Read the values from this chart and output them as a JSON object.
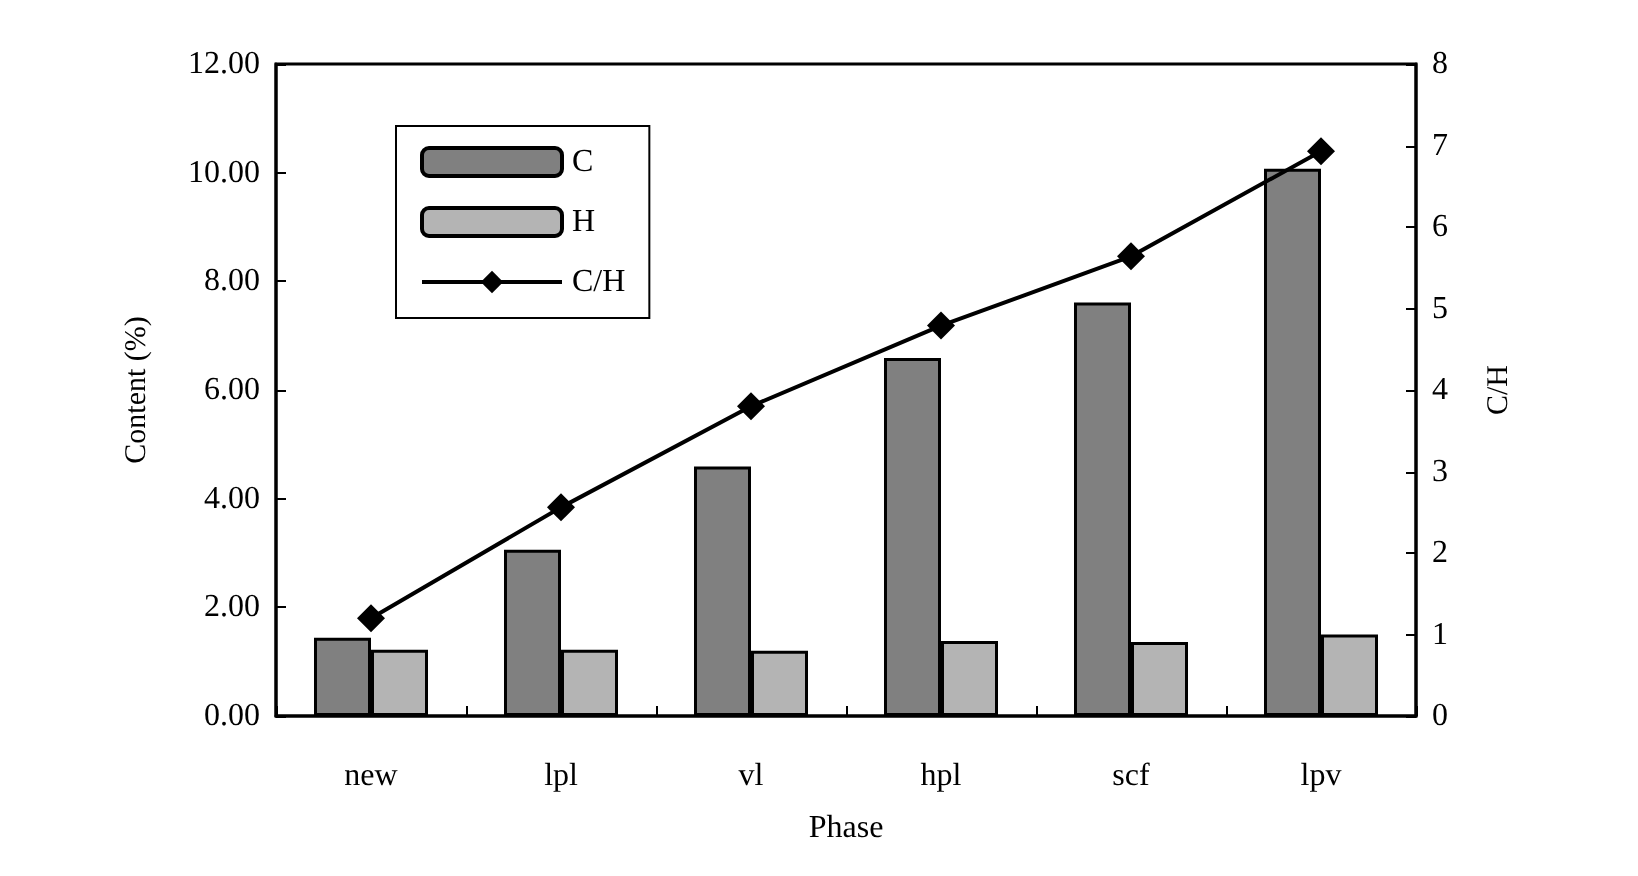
{
  "chart_data": {
    "type": "bar",
    "xlabel": "Phase",
    "ylabel": "Content (%)",
    "y2label": "C/H",
    "categories": [
      "new",
      "lpl",
      "vl",
      "hpl",
      "scf",
      "lpv"
    ],
    "series": [
      {
        "name": "C",
        "color": "#808080",
        "values": [
          1.44,
          3.06,
          4.59,
          6.59,
          7.61,
          10.07
        ]
      },
      {
        "name": "H",
        "color": "#b4b4b4",
        "values": [
          1.22,
          1.22,
          1.2,
          1.38,
          1.36,
          1.5
        ]
      },
      {
        "name": "C/H",
        "type": "line",
        "axis": "y2",
        "color": "#000000",
        "values": [
          1.2,
          2.56,
          3.8,
          4.79,
          5.64,
          6.93
        ]
      }
    ],
    "ylim": [
      0,
      12
    ],
    "yticks": [
      {
        "value": 0,
        "label": "0.00"
      },
      {
        "value": 2,
        "label": "2.00"
      },
      {
        "value": 4,
        "label": "4.00"
      },
      {
        "value": 6,
        "label": "6.00"
      },
      {
        "value": 8,
        "label": "8.00"
      },
      {
        "value": 10,
        "label": "10.00"
      },
      {
        "value": 12,
        "label": "12.00"
      }
    ],
    "y2lim": [
      0,
      8
    ],
    "y2ticks": [
      0,
      1,
      2,
      3,
      4,
      5,
      6,
      7,
      8
    ],
    "grid": false,
    "legend": "top left",
    "marker": "diamond",
    "line_style": "solid"
  }
}
